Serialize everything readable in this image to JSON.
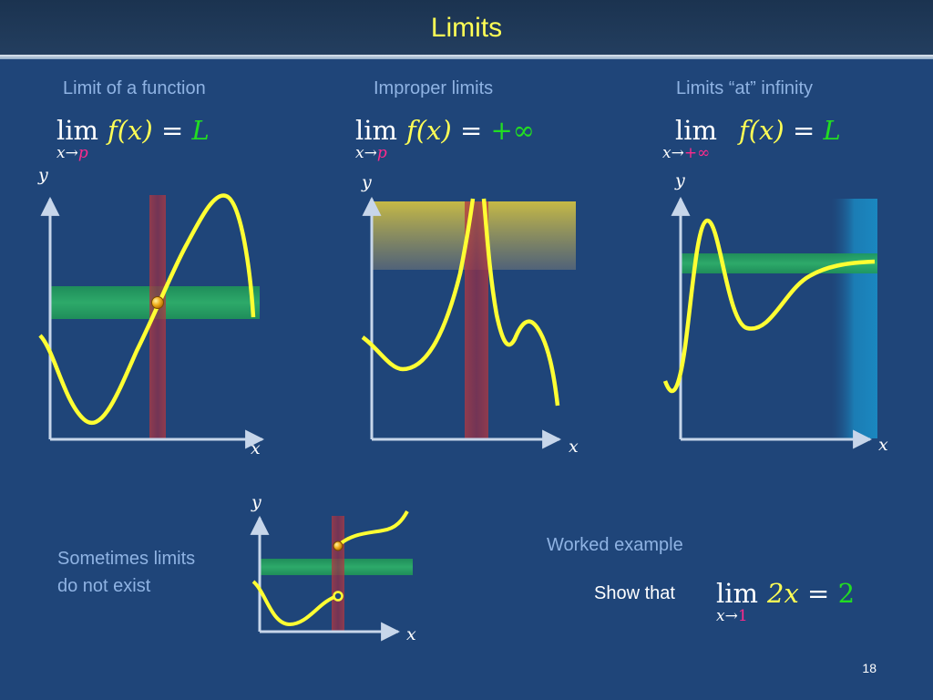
{
  "slide": {
    "title": "Limits",
    "page_number": "18"
  },
  "panels": [
    {
      "caption": "Limit of a function",
      "formula": {
        "lim": "lim",
        "var": "x",
        "arrow": "→",
        "target": "p",
        "func": "f(x)",
        "eq": "=",
        "value": "L"
      },
      "axis_x": "x",
      "axis_y": "y"
    },
    {
      "caption": "Improper limits",
      "formula": {
        "lim": "lim",
        "var": "x",
        "arrow": "→",
        "target": "p",
        "func": "f(x)",
        "eq": "=",
        "value": "+∞"
      },
      "axis_x": "x",
      "axis_y": "y"
    },
    {
      "caption": "Limits “at” infinity",
      "formula": {
        "lim": "lim",
        "var": "x",
        "arrow": "→",
        "target": "+∞",
        "func": "f(x)",
        "eq": "=",
        "value": "L"
      },
      "axis_x": "x",
      "axis_y": "y"
    }
  ],
  "dne": {
    "note_line1": "Sometimes limits",
    "note_line2": "do not exist",
    "axis_x": "x",
    "axis_y": "y"
  },
  "worked": {
    "caption": "Worked example",
    "prompt": "Show that",
    "formula": {
      "lim": "lim",
      "var": "x",
      "arrow": "→",
      "target": "1",
      "func": "2x",
      "eq": "=",
      "value": "2"
    }
  },
  "colors": {
    "background": "#1f4579",
    "curve": "#ffff33",
    "band_green": "#1f9a55",
    "band_red": "#b5383f",
    "band_yellow": "#d8c640",
    "band_blue": "#1a8fc8",
    "axis": "#c7d6ea"
  }
}
